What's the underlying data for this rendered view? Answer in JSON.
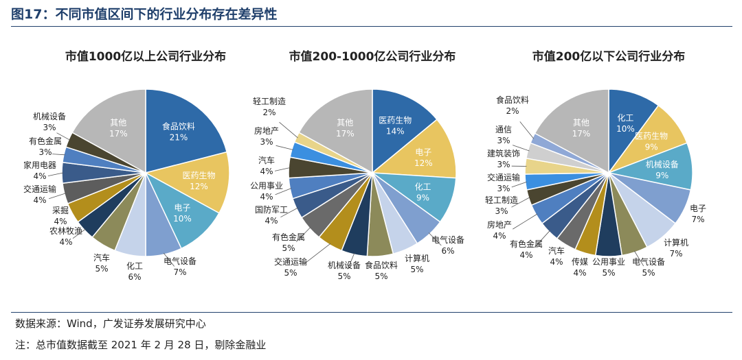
{
  "figure_title": "图17：不同市值区间下的行业分布存在差异性",
  "footer": {
    "source": "数据来源：Wind，广发证券发展研究中心",
    "note": "注：总市值数据截至 2021 年 2 月 28 日，剔除金融业"
  },
  "chart_data": [
    {
      "type": "pie",
      "title": "市值1000亿以上公司行业分布",
      "slices": [
        {
          "label": "食品饮料",
          "value": 21,
          "display": "21%",
          "color": "#2e6aa8"
        },
        {
          "label": "医药生物",
          "value": 12,
          "display": "12%",
          "color": "#e8c560"
        },
        {
          "label": "电子",
          "value": 10,
          "display": "10%",
          "color": "#5aaac8"
        },
        {
          "label": "电气设备",
          "value": 7,
          "display": "7%",
          "color": "#7f9fcf"
        },
        {
          "label": "化工",
          "value": 6,
          "display": "6%",
          "color": "#c5d3ea"
        },
        {
          "label": "汽车",
          "value": 5,
          "display": "5%",
          "color": "#8c8a5a"
        },
        {
          "label": "农林牧渔",
          "value": 4,
          "display": "4%",
          "color": "#1f3d5e"
        },
        {
          "label": "采掘",
          "value": 4,
          "display": "4%",
          "color": "#b38e1c"
        },
        {
          "label": "交通运输",
          "value": 4,
          "display": "4%",
          "color": "#5d5d5d"
        },
        {
          "label": "家用电器",
          "value": 4,
          "display": "4%",
          "color": "#3a5b8a"
        },
        {
          "label": "有色金属",
          "value": 3,
          "display": "3%",
          "color": "#4f7fc0"
        },
        {
          "label": "机械设备",
          "value": 3,
          "display": "3%",
          "color": "#4a4530"
        },
        {
          "label": "其他",
          "value": 17,
          "display": "17%",
          "color": "#b7b7b7"
        }
      ]
    },
    {
      "type": "pie",
      "title": "市值200-1000亿公司行业分布",
      "slices": [
        {
          "label": "医药生物",
          "value": 14,
          "display": "14%",
          "color": "#2e6aa8"
        },
        {
          "label": "电子",
          "value": 12,
          "display": "12%",
          "color": "#e8c560"
        },
        {
          "label": "化工",
          "value": 9,
          "display": "9%",
          "color": "#5aaac8"
        },
        {
          "label": "电气设备",
          "value": 6,
          "display": "6%",
          "color": "#7f9fcf"
        },
        {
          "label": "计算机",
          "value": 5,
          "display": "5%",
          "color": "#c5d3ea"
        },
        {
          "label": "食品饮料",
          "value": 5,
          "display": "5%",
          "color": "#8c8a5a"
        },
        {
          "label": "机械设备",
          "value": 5,
          "display": "5%",
          "color": "#1f3d5e"
        },
        {
          "label": "交通运输",
          "value": 5,
          "display": "5%",
          "color": "#b38e1c"
        },
        {
          "label": "有色金属",
          "value": 5,
          "display": "5%",
          "color": "#6a6a6a"
        },
        {
          "label": "国防军工",
          "value": 4,
          "display": "4%",
          "color": "#3a5b8a"
        },
        {
          "label": "公用事业",
          "value": 4,
          "display": "4%",
          "color": "#4f7fc0"
        },
        {
          "label": "汽车",
          "value": 4,
          "display": "4%",
          "color": "#4a4530"
        },
        {
          "label": "房地产",
          "value": 3,
          "display": "3%",
          "color": "#3b8fe0"
        },
        {
          "label": "轻工制造",
          "value": 2,
          "display": "2%",
          "color": "#e8d48a"
        },
        {
          "label": "其他",
          "value": 17,
          "display": "17%",
          "color": "#b7b7b7"
        }
      ]
    },
    {
      "type": "pie",
      "title": "市值200亿以下公司行业分布",
      "slices": [
        {
          "label": "化工",
          "value": 10,
          "display": "10%",
          "color": "#2e6aa8"
        },
        {
          "label": "医药生物",
          "value": 9,
          "display": "9%",
          "color": "#e8c560"
        },
        {
          "label": "机械设备",
          "value": 9,
          "display": "9%",
          "color": "#5aaac8"
        },
        {
          "label": "电子",
          "value": 7,
          "display": "7%",
          "color": "#7f9fcf"
        },
        {
          "label": "计算机",
          "value": 7,
          "display": "7%",
          "color": "#c5d3ea"
        },
        {
          "label": "电气设备",
          "value": 5,
          "display": "5%",
          "color": "#8c8a5a"
        },
        {
          "label": "公用事业",
          "value": 5,
          "display": "5%",
          "color": "#1f3d5e"
        },
        {
          "label": "传媒",
          "value": 4,
          "display": "4%",
          "color": "#b38e1c"
        },
        {
          "label": "汽车",
          "value": 4,
          "display": "4%",
          "color": "#6a6a6a"
        },
        {
          "label": "有色金属",
          "value": 4,
          "display": "4%",
          "color": "#3a5b8a"
        },
        {
          "label": "房地产",
          "value": 4,
          "display": "4%",
          "color": "#4f7fc0"
        },
        {
          "label": "轻工制造",
          "value": 3,
          "display": "3%",
          "color": "#4a4530"
        },
        {
          "label": "交通运输",
          "value": 3,
          "display": "3%",
          "color": "#3b8fe0"
        },
        {
          "label": "建筑装饰",
          "value": 3,
          "display": "3%",
          "color": "#e8d48a"
        },
        {
          "label": "通信",
          "value": 3,
          "display": "3%",
          "color": "#cfcfcf"
        },
        {
          "label": "食品饮料",
          "value": 2,
          "display": "2%",
          "color": "#8fa8d6"
        },
        {
          "label": "其他",
          "value": 17,
          "display": "17%",
          "color": "#b7b7b7"
        }
      ]
    }
  ]
}
